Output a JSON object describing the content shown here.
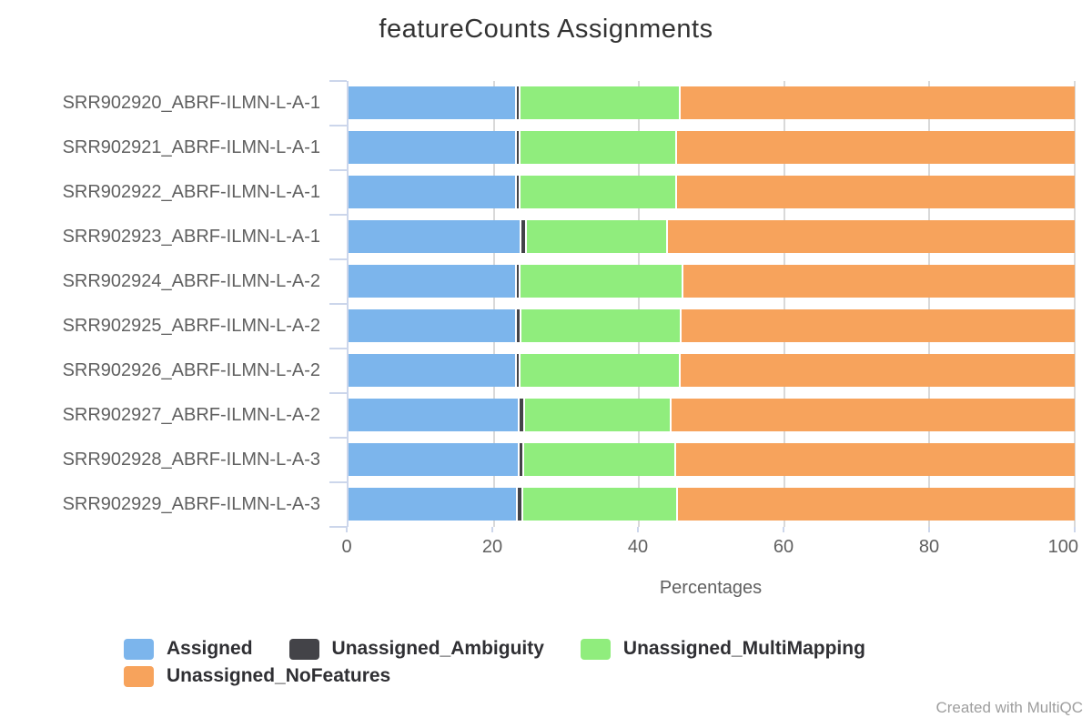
{
  "title": "featureCounts Assignments",
  "watermark": "Created with MultiQC",
  "colors": {
    "axis_line": "#ccd6eb",
    "gridline": "#d9d9d9",
    "tick_label": "#606060",
    "title_text": "#333333",
    "legend_text": "#2f2f33",
    "watermark_text": "#9e9e9e"
  },
  "chart_data": {
    "type": "bar",
    "orientation": "horizontal-stacked",
    "title": "featureCounts Assignments",
    "xlabel": "Percentages",
    "ylabel": "",
    "xlim": [
      0,
      100
    ],
    "xticks": [
      0,
      20,
      40,
      60,
      80,
      100
    ],
    "grid": true,
    "legend_position": "bottom-left",
    "categories": [
      "SRR902920_ABRF-ILMN-L-A-1",
      "SRR902921_ABRF-ILMN-L-A-1",
      "SRR902922_ABRF-ILMN-L-A-1",
      "SRR902923_ABRF-ILMN-L-A-1",
      "SRR902924_ABRF-ILMN-L-A-2",
      "SRR902925_ABRF-ILMN-L-A-2",
      "SRR902926_ABRF-ILMN-L-A-2",
      "SRR902927_ABRF-ILMN-L-A-2",
      "SRR902928_ABRF-ILMN-L-A-3",
      "SRR902929_ABRF-ILMN-L-A-3"
    ],
    "series": [
      {
        "name": "Assigned",
        "color": "#7cb5ec",
        "values": [
          23.2,
          23.2,
          23.2,
          23.8,
          23.2,
          23.2,
          23.2,
          23.6,
          23.5,
          23.3
        ]
      },
      {
        "name": "Unassigned_Ambiguity",
        "color": "#434348",
        "values": [
          0.5,
          0.5,
          0.5,
          0.7,
          0.5,
          0.6,
          0.5,
          0.7,
          0.7,
          0.7
        ]
      },
      {
        "name": "Unassigned_MultiMapping",
        "color": "#90ed7d",
        "values": [
          22.1,
          21.5,
          21.6,
          19.5,
          22.4,
          22.1,
          22.0,
          20.2,
          20.9,
          21.4
        ]
      },
      {
        "name": "Unassigned_NoFeatures",
        "color": "#f7a35c",
        "values": [
          54.2,
          54.8,
          54.7,
          56.0,
          53.9,
          54.1,
          54.3,
          55.5,
          54.9,
          54.6
        ]
      }
    ]
  }
}
